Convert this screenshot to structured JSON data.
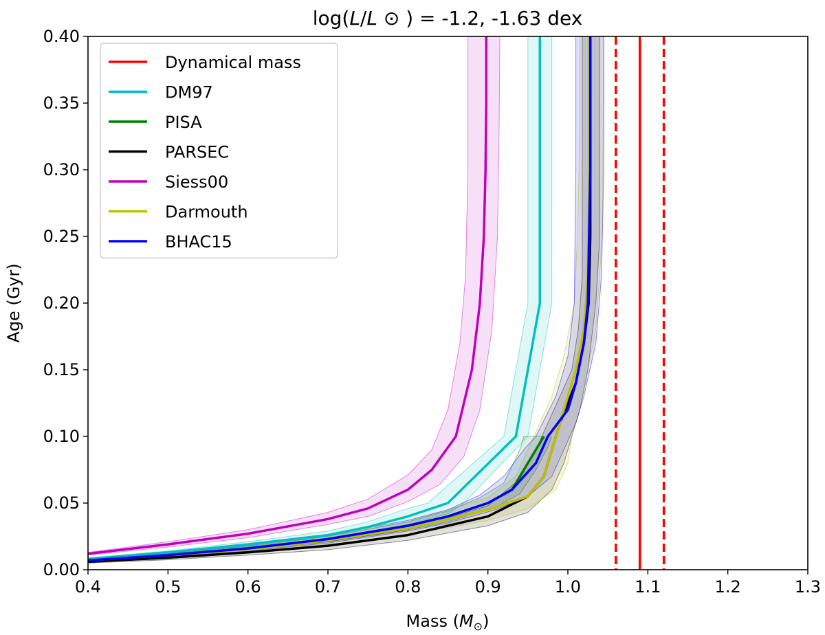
{
  "chart_data": {
    "type": "line",
    "title_parts": {
      "prefix": "log(",
      "L1": "L",
      "slash": "/",
      "L2": "L",
      "suffix": " ⊙ ) = -1.2, -1.63 dex"
    },
    "xlabel_parts": {
      "prefix": "Mass (",
      "M": "M",
      "sub": "⊙",
      "suffix": ")"
    },
    "ylabel": "Age (Gyr)",
    "xlim": [
      0.4,
      1.3
    ],
    "ylim": [
      0.0,
      0.4
    ],
    "xticks": [
      "0.4",
      "0.5",
      "0.6",
      "0.7",
      "0.8",
      "0.9",
      "1.0",
      "1.1",
      "1.2",
      "1.3"
    ],
    "yticks": [
      "0.00",
      "0.05",
      "0.10",
      "0.15",
      "0.20",
      "0.25",
      "0.30",
      "0.35",
      "0.40"
    ],
    "legend": {
      "position": "upper-left"
    },
    "dynamical_mass": {
      "name": "Dynamical mass",
      "color": "#ff0000",
      "value": 1.09,
      "lower": 1.06,
      "upper": 1.12
    },
    "series": [
      {
        "name": "DM97",
        "color": "#00bfbf",
        "points": [
          [
            0.4,
            0.008
          ],
          [
            0.5,
            0.013
          ],
          [
            0.6,
            0.019
          ],
          [
            0.7,
            0.026
          ],
          [
            0.75,
            0.032
          ],
          [
            0.8,
            0.04
          ],
          [
            0.85,
            0.05
          ],
          [
            0.935,
            0.1
          ],
          [
            0.965,
            0.2
          ],
          [
            0.965,
            0.4
          ]
        ],
        "band": {
          "upper": [
            [
              0.4,
              0.009
            ],
            [
              0.5,
              0.014
            ],
            [
              0.6,
              0.021
            ],
            [
              0.7,
              0.029
            ],
            [
              0.75,
              0.036
            ],
            [
              0.8,
              0.046
            ],
            [
              0.825,
              0.05
            ],
            [
              0.92,
              0.1
            ],
            [
              0.95,
              0.2
            ],
            [
              0.95,
              0.4
            ]
          ],
          "lower": [
            [
              0.4,
              0.007
            ],
            [
              0.5,
              0.012
            ],
            [
              0.6,
              0.017
            ],
            [
              0.7,
              0.023
            ],
            [
              0.75,
              0.028
            ],
            [
              0.8,
              0.034
            ],
            [
              0.85,
              0.042
            ],
            [
              0.87,
              0.05
            ],
            [
              0.95,
              0.1
            ],
            [
              0.98,
              0.2
            ],
            [
              0.98,
              0.4
            ]
          ]
        }
      },
      {
        "name": "PISA",
        "color": "#008000",
        "points": [
          [
            0.4,
            0.007
          ],
          [
            0.5,
            0.011
          ],
          [
            0.6,
            0.016
          ],
          [
            0.7,
            0.023
          ],
          [
            0.8,
            0.033
          ],
          [
            0.85,
            0.04
          ],
          [
            0.9,
            0.05
          ],
          [
            0.93,
            0.06
          ],
          [
            0.95,
            0.08
          ],
          [
            0.96,
            0.09
          ],
          [
            0.97,
            0.1
          ]
        ],
        "band": {
          "upper": [
            [
              0.4,
              0.0078
            ],
            [
              0.5,
              0.012
            ],
            [
              0.6,
              0.0175
            ],
            [
              0.7,
              0.025
            ],
            [
              0.8,
              0.036
            ],
            [
              0.85,
              0.044
            ],
            [
              0.89,
              0.054
            ],
            [
              0.92,
              0.065
            ],
            [
              0.94,
              0.09
            ],
            [
              0.945,
              0.1
            ],
            [
              0.97,
              0.1
            ]
          ],
          "lower": [
            [
              0.4,
              0.0062
            ],
            [
              0.5,
              0.01
            ],
            [
              0.6,
              0.0145
            ],
            [
              0.7,
              0.021
            ],
            [
              0.8,
              0.03
            ],
            [
              0.85,
              0.036
            ],
            [
              0.91,
              0.047
            ],
            [
              0.94,
              0.057
            ],
            [
              0.96,
              0.075
            ],
            [
              0.975,
              0.092
            ],
            [
              0.98,
              0.1
            ]
          ]
        }
      },
      {
        "name": "PARSEC",
        "color": "#000000",
        "points": [
          [
            0.4,
            0.006
          ],
          [
            0.5,
            0.009
          ],
          [
            0.6,
            0.013
          ],
          [
            0.7,
            0.018
          ],
          [
            0.8,
            0.026
          ],
          [
            0.9,
            0.04
          ],
          [
            0.95,
            0.055
          ],
          [
            0.97,
            0.07
          ],
          [
            0.98,
            0.09
          ],
          [
            0.99,
            0.11
          ],
          [
            1.0,
            0.125
          ],
          [
            1.01,
            0.14
          ],
          [
            1.02,
            0.17
          ],
          [
            1.026,
            0.2
          ],
          [
            1.028,
            0.25
          ],
          [
            1.028,
            0.3
          ],
          [
            1.028,
            0.35
          ],
          [
            1.028,
            0.4
          ]
        ],
        "band": {
          "upper": [
            [
              0.4,
              0.007
            ],
            [
              0.5,
              0.0105
            ],
            [
              0.6,
              0.015
            ],
            [
              0.7,
              0.021
            ],
            [
              0.8,
              0.03
            ],
            [
              0.9,
              0.048
            ],
            [
              0.94,
              0.068
            ],
            [
              0.96,
              0.09
            ],
            [
              0.975,
              0.11
            ],
            [
              0.99,
              0.13
            ],
            [
              1.005,
              0.15
            ],
            [
              1.013,
              0.18
            ],
            [
              1.018,
              0.22
            ],
            [
              1.018,
              0.3
            ],
            [
              1.018,
              0.4
            ]
          ],
          "lower": [
            [
              0.4,
              0.005
            ],
            [
              0.5,
              0.0075
            ],
            [
              0.6,
              0.011
            ],
            [
              0.7,
              0.015
            ],
            [
              0.8,
              0.022
            ],
            [
              0.9,
              0.033
            ],
            [
              0.95,
              0.043
            ],
            [
              0.98,
              0.06
            ],
            [
              0.995,
              0.08
            ],
            [
              1.005,
              0.1
            ],
            [
              1.015,
              0.12
            ],
            [
              1.025,
              0.15
            ],
            [
              1.035,
              0.2
            ],
            [
              1.04,
              0.25
            ],
            [
              1.04,
              0.4
            ]
          ]
        }
      },
      {
        "name": "Siess00",
        "color": "#bf00bf",
        "points": [
          [
            0.4,
            0.012
          ],
          [
            0.5,
            0.019
          ],
          [
            0.6,
            0.027
          ],
          [
            0.7,
            0.038
          ],
          [
            0.75,
            0.046
          ],
          [
            0.8,
            0.06
          ],
          [
            0.83,
            0.075
          ],
          [
            0.86,
            0.1
          ],
          [
            0.88,
            0.15
          ],
          [
            0.89,
            0.2
          ],
          [
            0.895,
            0.25
          ],
          [
            0.897,
            0.3
          ],
          [
            0.898,
            0.35
          ],
          [
            0.898,
            0.4
          ]
        ],
        "band": {
          "upper": [
            [
              0.4,
              0.013
            ],
            [
              0.5,
              0.021
            ],
            [
              0.6,
              0.03
            ],
            [
              0.7,
              0.043
            ],
            [
              0.75,
              0.053
            ],
            [
              0.8,
              0.071
            ],
            [
              0.83,
              0.09
            ],
            [
              0.85,
              0.12
            ],
            [
              0.865,
              0.17
            ],
            [
              0.872,
              0.22
            ],
            [
              0.875,
              0.3
            ],
            [
              0.875,
              0.4
            ]
          ],
          "lower": [
            [
              0.4,
              0.011
            ],
            [
              0.5,
              0.017
            ],
            [
              0.6,
              0.024
            ],
            [
              0.7,
              0.034
            ],
            [
              0.75,
              0.04
            ],
            [
              0.8,
              0.051
            ],
            [
              0.84,
              0.064
            ],
            [
              0.87,
              0.085
            ],
            [
              0.89,
              0.12
            ],
            [
              0.905,
              0.18
            ],
            [
              0.912,
              0.25
            ],
            [
              0.914,
              0.33
            ],
            [
              0.915,
              0.4
            ]
          ]
        }
      },
      {
        "name": "Darmouth",
        "color": "#bfbf00",
        "points": [
          [
            0.4,
            0.007
          ],
          [
            0.5,
            0.011
          ],
          [
            0.6,
            0.015
          ],
          [
            0.7,
            0.022
          ],
          [
            0.8,
            0.031
          ],
          [
            0.9,
            0.045
          ],
          [
            0.95,
            0.055
          ],
          [
            0.97,
            0.07
          ],
          [
            0.98,
            0.09
          ],
          [
            0.99,
            0.11
          ],
          [
            1.0,
            0.13
          ],
          [
            1.01,
            0.15
          ],
          [
            1.02,
            0.18
          ],
          [
            1.025,
            0.22
          ],
          [
            1.027,
            0.3
          ],
          [
            1.027,
            0.4
          ]
        ],
        "band": {
          "upper": [
            [
              0.4,
              0.008
            ],
            [
              0.5,
              0.0125
            ],
            [
              0.6,
              0.017
            ],
            [
              0.7,
              0.025
            ],
            [
              0.8,
              0.036
            ],
            [
              0.9,
              0.054
            ],
            [
              0.935,
              0.07
            ],
            [
              0.95,
              0.09
            ],
            [
              0.965,
              0.11
            ],
            [
              0.98,
              0.13
            ],
            [
              0.995,
              0.16
            ],
            [
              1.008,
              0.2
            ],
            [
              1.012,
              0.25
            ],
            [
              1.014,
              0.3
            ],
            [
              1.015,
              0.4
            ]
          ],
          "lower": [
            [
              0.4,
              0.006
            ],
            [
              0.5,
              0.0095
            ],
            [
              0.6,
              0.013
            ],
            [
              0.7,
              0.019
            ],
            [
              0.8,
              0.026
            ],
            [
              0.9,
              0.037
            ],
            [
              0.95,
              0.046
            ],
            [
              0.985,
              0.06
            ],
            [
              1.0,
              0.08
            ],
            [
              1.005,
              0.1
            ],
            [
              1.015,
              0.12
            ],
            [
              1.025,
              0.15
            ],
            [
              1.035,
              0.18
            ],
            [
              1.043,
              0.25
            ],
            [
              1.045,
              0.4
            ]
          ]
        }
      },
      {
        "name": "BHAC15",
        "color": "#0000ff",
        "points": [
          [
            0.4,
            0.007
          ],
          [
            0.5,
            0.011
          ],
          [
            0.6,
            0.016
          ],
          [
            0.7,
            0.023
          ],
          [
            0.8,
            0.033
          ],
          [
            0.85,
            0.04
          ],
          [
            0.9,
            0.05
          ],
          [
            0.93,
            0.06
          ],
          [
            0.96,
            0.08
          ],
          [
            0.975,
            0.1
          ],
          [
            1.0,
            0.12
          ],
          [
            1.01,
            0.14
          ],
          [
            1.02,
            0.17
          ],
          [
            1.025,
            0.2
          ],
          [
            1.028,
            0.3
          ],
          [
            1.028,
            0.4
          ]
        ],
        "band": {
          "upper": [
            [
              0.4,
              0.008
            ],
            [
              0.5,
              0.0125
            ],
            [
              0.6,
              0.018
            ],
            [
              0.7,
              0.026
            ],
            [
              0.8,
              0.037
            ],
            [
              0.85,
              0.045
            ],
            [
              0.89,
              0.056
            ],
            [
              0.92,
              0.07
            ],
            [
              0.945,
              0.09
            ],
            [
              0.96,
              0.1
            ],
            [
              0.985,
              0.13
            ],
            [
              1.0,
              0.16
            ],
            [
              1.008,
              0.2
            ],
            [
              1.01,
              0.3
            ],
            [
              1.01,
              0.4
            ]
          ],
          "lower": [
            [
              0.4,
              0.006
            ],
            [
              0.5,
              0.0095
            ],
            [
              0.6,
              0.014
            ],
            [
              0.7,
              0.02
            ],
            [
              0.8,
              0.029
            ],
            [
              0.85,
              0.035
            ],
            [
              0.91,
              0.045
            ],
            [
              0.95,
              0.055
            ],
            [
              0.98,
              0.07
            ],
            [
              0.995,
              0.09
            ],
            [
              1.01,
              0.11
            ],
            [
              1.02,
              0.13
            ],
            [
              1.035,
              0.17
            ],
            [
              1.042,
              0.22
            ],
            [
              1.045,
              0.3
            ],
            [
              1.045,
              0.4
            ]
          ]
        }
      }
    ]
  }
}
